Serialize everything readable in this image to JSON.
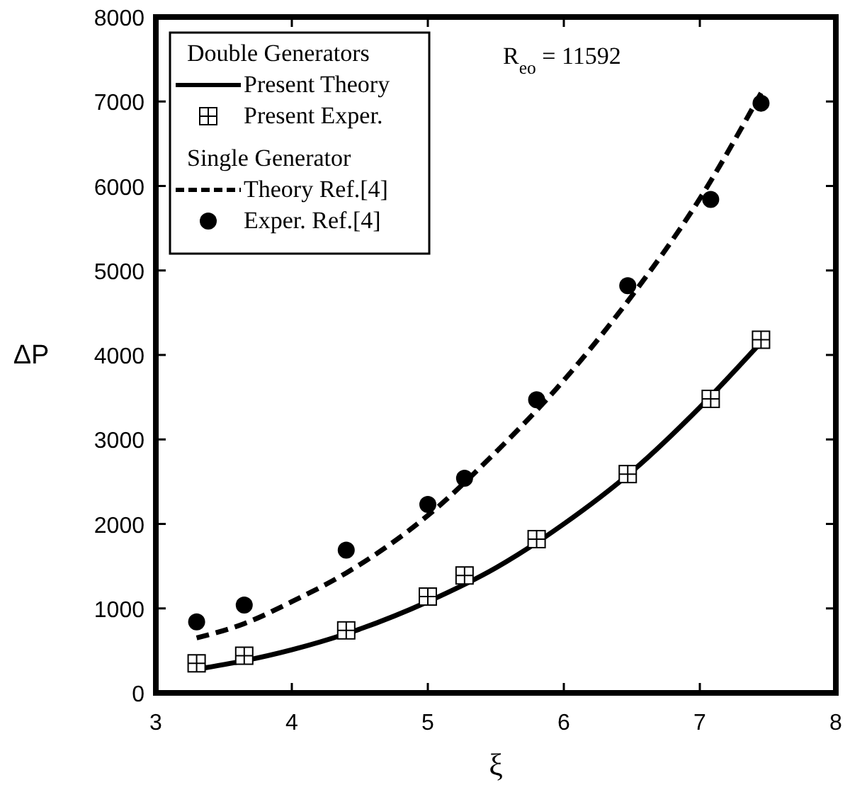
{
  "chart_data": {
    "type": "line",
    "xlabel": "ξ",
    "ylabel": "ΔP",
    "xlim": [
      3,
      8
    ],
    "ylim": [
      0,
      8000
    ],
    "xticks": [
      3,
      4,
      5,
      6,
      7,
      8
    ],
    "yticks": [
      0,
      1000,
      2000,
      3000,
      4000,
      5000,
      6000,
      7000,
      8000
    ],
    "grid": false,
    "legend": "top left",
    "annotations": [
      "Double Generators",
      "Single Generator",
      "R$_{eo}$ = 11592"
    ],
    "series": [
      {
        "name": "Present Theory",
        "color": "#000000",
        "line_style": "solid",
        "marker": "none",
        "x": [
          3.3,
          3.65,
          4.0,
          4.4,
          5.0,
          5.5,
          6.0,
          6.5,
          7.0,
          7.45
        ],
        "values": [
          280,
          380,
          510,
          700,
          1080,
          1480,
          2000,
          2620,
          3380,
          4150
        ]
      },
      {
        "name": "Present Exper.",
        "type": "scatter",
        "color": "#000000",
        "marker": "square",
        "x": [
          3.3,
          3.65,
          4.4,
          5.0,
          5.27,
          5.8,
          6.47,
          7.08,
          7.45
        ],
        "values": [
          350,
          440,
          740,
          1140,
          1390,
          1820,
          2590,
          3480,
          4180
        ]
      },
      {
        "name": "Theory Ref.[4]",
        "color": "#000000",
        "line_style": "dashed",
        "marker": "none",
        "x": [
          3.3,
          3.65,
          4.0,
          4.4,
          5.0,
          5.5,
          6.0,
          6.5,
          7.0,
          7.45
        ],
        "values": [
          650,
          820,
          1080,
          1420,
          2100,
          2850,
          3700,
          4700,
          5850,
          7100
        ]
      },
      {
        "name": "Exper. Ref.[4]",
        "type": "scatter",
        "color": "#000000",
        "marker": "circle",
        "x": [
          3.3,
          3.65,
          4.4,
          5.0,
          5.27,
          5.8,
          6.47,
          7.08,
          7.45
        ],
        "values": [
          840,
          1040,
          1690,
          2230,
          2540,
          3470,
          4820,
          5840,
          6980
        ]
      }
    ]
  }
}
